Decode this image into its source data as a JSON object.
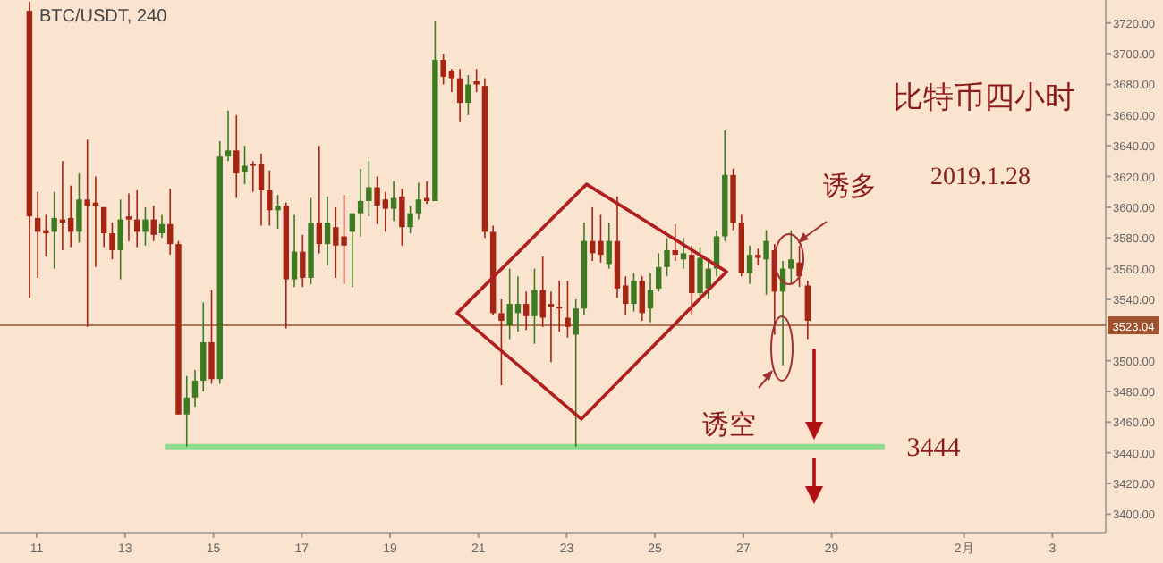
{
  "chart_data": {
    "type": "candlestick",
    "title": "比特币四小时",
    "subtitle": "2019.1.28",
    "annotations": [
      "BTC/USDT, 240",
      {
        "text": "诱多",
        "x": "2019-01-28T02:00",
        "y": 3585
      },
      {
        "text": "诱空",
        "x": "2019-01-27T21:30",
        "y": 3497
      }
    ],
    "x": [
      "2019-01-10T20:00",
      "2019-01-11T00:30",
      "2019-01-11T05:00",
      "2019-01-11T09:30",
      "2019-01-11T14:00",
      "2019-01-11T18:30",
      "2019-01-11T23:00",
      "2019-01-12T03:30",
      "2019-01-12T08:00",
      "2019-01-12T12:30",
      "2019-01-12T17:00",
      "2019-01-12T21:30",
      "2019-01-13T02:00",
      "2019-01-13T06:30",
      "2019-01-13T11:00",
      "2019-01-13T15:30",
      "2019-01-13T20:00",
      "2019-01-14T00:30",
      "2019-01-14T05:00",
      "2019-01-14T09:30",
      "2019-01-14T14:00",
      "2019-01-14T18:30",
      "2019-01-14T23:00",
      "2019-01-15T03:30",
      "2019-01-15T08:00",
      "2019-01-15T12:30",
      "2019-01-15T17:00",
      "2019-01-15T21:30",
      "2019-01-16T02:00",
      "2019-01-16T06:30",
      "2019-01-16T11:00",
      "2019-01-16T15:30",
      "2019-01-16T20:00",
      "2019-01-17T00:30",
      "2019-01-17T05:00",
      "2019-01-17T09:30",
      "2019-01-17T14:00",
      "2019-01-17T18:30",
      "2019-01-17T23:00",
      "2019-01-18T03:30",
      "2019-01-18T08:00",
      "2019-01-18T12:30",
      "2019-01-18T17:00",
      "2019-01-18T21:30",
      "2019-01-19T02:00",
      "2019-01-19T06:30",
      "2019-01-19T11:00",
      "2019-01-19T15:30",
      "2019-01-19T20:00",
      "2019-01-20T00:30",
      "2019-01-20T05:00",
      "2019-01-20T09:30",
      "2019-01-20T14:00",
      "2019-01-20T18:30",
      "2019-01-20T23:00",
      "2019-01-21T03:30",
      "2019-01-21T08:00",
      "2019-01-21T12:30",
      "2019-01-21T17:00",
      "2019-01-21T21:30",
      "2019-01-22T02:00",
      "2019-01-22T06:30",
      "2019-01-22T11:00",
      "2019-01-22T15:30",
      "2019-01-22T20:00",
      "2019-01-23T00:30",
      "2019-01-23T05:00",
      "2019-01-23T09:30",
      "2019-01-23T14:00",
      "2019-01-23T18:30",
      "2019-01-23T23:00",
      "2019-01-24T03:30",
      "2019-01-24T08:00",
      "2019-01-24T12:30",
      "2019-01-24T17:00",
      "2019-01-24T21:30",
      "2019-01-25T02:00",
      "2019-01-25T06:30",
      "2019-01-25T11:00",
      "2019-01-25T15:30",
      "2019-01-25T20:00",
      "2019-01-26T00:30",
      "2019-01-26T05:00",
      "2019-01-26T09:30",
      "2019-01-26T14:00",
      "2019-01-26T18:30",
      "2019-01-26T23:00",
      "2019-01-27T03:30",
      "2019-01-27T08:00",
      "2019-01-27T12:30",
      "2019-01-27T17:00",
      "2019-01-27T21:30",
      "2019-01-28T02:00",
      "2019-01-28T06:30",
      "2019-01-28T11:00"
    ],
    "ohlc": [
      [
        3728,
        3734,
        3541,
        3594
      ],
      [
        3593,
        3610,
        3554,
        3584
      ],
      [
        3585,
        3595,
        3568,
        3583
      ],
      [
        3584,
        3610,
        3560,
        3593
      ],
      [
        3592,
        3630,
        3572,
        3590
      ],
      [
        3593,
        3614,
        3574,
        3584
      ],
      [
        3584,
        3622,
        3577,
        3605
      ],
      [
        3605,
        3644,
        3522,
        3601
      ],
      [
        3603,
        3620,
        3561,
        3601
      ],
      [
        3600,
        3600,
        3574,
        3583
      ],
      [
        3583,
        3590,
        3566,
        3572
      ],
      [
        3572,
        3605,
        3553,
        3592
      ],
      [
        3594,
        3609,
        3578,
        3592
      ],
      [
        3592,
        3611,
        3574,
        3584
      ],
      [
        3584,
        3600,
        3575,
        3592
      ],
      [
        3592,
        3601,
        3578,
        3582
      ],
      [
        3583,
        3595,
        3580,
        3589
      ],
      [
        3589,
        3612,
        3569,
        3576
      ],
      [
        3576,
        3578,
        3465,
        3465
      ],
      [
        3465,
        3490,
        3444,
        3476
      ],
      [
        3476,
        3494,
        3470,
        3487
      ],
      [
        3487,
        3538,
        3480,
        3512
      ],
      [
        3512,
        3546,
        3485,
        3488
      ],
      [
        3488,
        3643,
        3485,
        3633
      ],
      [
        3633,
        3663,
        3630,
        3637
      ],
      [
        3637,
        3660,
        3606,
        3622
      ],
      [
        3623,
        3640,
        3615,
        3627
      ],
      [
        3628,
        3630,
        3610,
        3627
      ],
      [
        3628,
        3635,
        3588,
        3611
      ],
      [
        3611,
        3624,
        3588,
        3598
      ],
      [
        3598,
        3608,
        3586,
        3601
      ],
      [
        3601,
        3603,
        3521,
        3553
      ],
      [
        3553,
        3595,
        3548,
        3571
      ],
      [
        3571,
        3582,
        3548,
        3554
      ],
      [
        3554,
        3606,
        3550,
        3590
      ],
      [
        3590,
        3640,
        3570,
        3576
      ],
      [
        3576,
        3607,
        3562,
        3590
      ],
      [
        3587,
        3600,
        3554,
        3575
      ],
      [
        3581,
        3608,
        3550,
        3575
      ],
      [
        3584,
        3596,
        3548,
        3596
      ],
      [
        3596,
        3625,
        3581,
        3604
      ],
      [
        3604,
        3630,
        3594,
        3613
      ],
      [
        3613,
        3620,
        3589,
        3601
      ],
      [
        3605,
        3610,
        3584,
        3599
      ],
      [
        3599,
        3617,
        3591,
        3606
      ],
      [
        3607,
        3612,
        3575,
        3587
      ],
      [
        3587,
        3601,
        3583,
        3596
      ],
      [
        3596,
        3616,
        3592,
        3605
      ],
      [
        3606,
        3617,
        3602,
        3604
      ],
      [
        3604,
        3721,
        3604,
        3696
      ],
      [
        3696,
        3700,
        3680,
        3685
      ],
      [
        3689,
        3690,
        3675,
        3684
      ],
      [
        3684,
        3690,
        3656,
        3668
      ],
      [
        3668,
        3686,
        3660,
        3680
      ],
      [
        3682,
        3690,
        3675,
        3680
      ],
      [
        3679,
        3684,
        3580,
        3584
      ],
      [
        3584,
        3588,
        3530,
        3531
      ],
      [
        3531,
        3540,
        3484,
        3526
      ],
      [
        3523,
        3560,
        3514,
        3537
      ],
      [
        3531,
        3555,
        3519,
        3537
      ],
      [
        3537,
        3545,
        3520,
        3529
      ],
      [
        3529,
        3560,
        3511,
        3546
      ],
      [
        3546,
        3568,
        3522,
        3528
      ],
      [
        3537,
        3545,
        3499,
        3535
      ],
      [
        3535,
        3552,
        3519,
        3534
      ],
      [
        3528,
        3552,
        3515,
        3522
      ],
      [
        3517,
        3540,
        3444,
        3534
      ],
      [
        3534,
        3590,
        3530,
        3578
      ],
      [
        3578,
        3600,
        3565,
        3570
      ],
      [
        3578,
        3595,
        3564,
        3569
      ],
      [
        3563,
        3590,
        3560,
        3578
      ],
      [
        3578,
        3607,
        3541,
        3547
      ],
      [
        3549,
        3555,
        3530,
        3537
      ],
      [
        3537,
        3557,
        3532,
        3552
      ],
      [
        3552,
        3555,
        3526,
        3531
      ],
      [
        3534,
        3557,
        3525,
        3546
      ],
      [
        3547,
        3570,
        3545,
        3561
      ],
      [
        3561,
        3580,
        3555,
        3572
      ],
      [
        3572,
        3589,
        3565,
        3569
      ],
      [
        3566,
        3580,
        3560,
        3570
      ],
      [
        3569,
        3575,
        3530,
        3544
      ],
      [
        3544,
        3574,
        3539,
        3567
      ],
      [
        3547,
        3565,
        3540,
        3560
      ],
      [
        3560,
        3585,
        3555,
        3581
      ],
      [
        3581,
        3650,
        3578,
        3621
      ],
      [
        3621,
        3625,
        3585,
        3590
      ],
      [
        3590,
        3595,
        3555,
        3557
      ],
      [
        3557,
        3575,
        3550,
        3569
      ],
      [
        3569,
        3573,
        3562,
        3567
      ],
      [
        3566,
        3585,
        3543,
        3578
      ],
      [
        3572,
        3576,
        3517,
        3545
      ],
      [
        3545,
        3565,
        3497,
        3560
      ],
      [
        3560,
        3585,
        3550,
        3566
      ],
      [
        3564,
        3575,
        3548,
        3555
      ],
      [
        3549,
        3552,
        3514,
        3526
      ]
    ],
    "colors": [
      "#a62412",
      "#a62412",
      "#a62412",
      "#3d7a22",
      "#a62412",
      "#a62412",
      "#3d7a22",
      "#a62412",
      "#a62412",
      "#a62412",
      "#a62412",
      "#3d7a22",
      "#a62412",
      "#a62412",
      "#3d7a22",
      "#a62412",
      "#3d7a22",
      "#a62412",
      "#a62412",
      "#3d7a22",
      "#3d7a22",
      "#3d7a22",
      "#a62412",
      "#3d7a22",
      "#3d7a22",
      "#a62412",
      "#3d7a22",
      "#a62412",
      "#a62412",
      "#a62412",
      "#3d7a22",
      "#a62412",
      "#3d7a22",
      "#a62412",
      "#3d7a22",
      "#a62412",
      "#3d7a22",
      "#a62412",
      "#a62412",
      "#3d7a22",
      "#3d7a22",
      "#3d7a22",
      "#a62412",
      "#a62412",
      "#3d7a22",
      "#a62412",
      "#3d7a22",
      "#3d7a22",
      "#a62412",
      "#3d7a22",
      "#a62412",
      "#a62412",
      "#a62412",
      "#3d7a22",
      "#a62412",
      "#a62412",
      "#a62412",
      "#a62412",
      "#3d7a22",
      "#3d7a22",
      "#a62412",
      "#3d7a22",
      "#a62412",
      "#a62412",
      "#a62412",
      "#a62412",
      "#3d7a22",
      "#3d7a22",
      "#a62412",
      "#a62412",
      "#3d7a22",
      "#a62412",
      "#a62412",
      "#3d7a22",
      "#a62412",
      "#3d7a22",
      "#3d7a22",
      "#3d7a22",
      "#a62412",
      "#3d7a22",
      "#a62412",
      "#3d7a22",
      "#3d7a22",
      "#3d7a22",
      "#3d7a22",
      "#a62412",
      "#a62412",
      "#3d7a22",
      "#a62412",
      "#3d7a22",
      "#a62412",
      "#3d7a22",
      "#3d7a22",
      "#a62412",
      "#a62412"
    ],
    "xlim": [
      "2019-01-10T04:00",
      "2019-02-04T05:00"
    ],
    "xticks": [
      {
        "value": "2019-01-11",
        "label": "11"
      },
      {
        "value": "2019-01-13",
        "label": "13"
      },
      {
        "value": "2019-01-15",
        "label": "15"
      },
      {
        "value": "2019-01-17",
        "label": "17"
      },
      {
        "value": "2019-01-19",
        "label": "19"
      },
      {
        "value": "2019-01-21",
        "label": "21"
      },
      {
        "value": "2019-01-23",
        "label": "23"
      },
      {
        "value": "2019-01-25",
        "label": "25"
      },
      {
        "value": "2019-01-27",
        "label": "27"
      },
      {
        "value": "2019-01-29",
        "label": "29"
      },
      {
        "value": "2019-02-01",
        "label": "2月"
      },
      {
        "value": "2019-02-03",
        "label": "3"
      }
    ],
    "ylim": [
      3388,
      3735
    ],
    "yticks": [
      {
        "value": 3400,
        "label": "3400.00"
      },
      {
        "value": 3420,
        "label": "3420.00"
      },
      {
        "value": 3440,
        "label": "3440.00"
      },
      {
        "value": 3460,
        "label": "3460.00"
      },
      {
        "value": 3480,
        "label": "3480.00"
      },
      {
        "value": 3500,
        "label": "3500.00"
      },
      {
        "value": 3540,
        "label": "3540.00"
      },
      {
        "value": 3560,
        "label": "3560.00"
      },
      {
        "value": 3580,
        "label": "3580.00"
      },
      {
        "value": 3600,
        "label": "3600.00"
      },
      {
        "value": 3620,
        "label": "3620.00"
      },
      {
        "value": 3640,
        "label": "3640.00"
      },
      {
        "value": 3660,
        "label": "3660.00"
      },
      {
        "value": 3680,
        "label": "3680.00"
      },
      {
        "value": 3700,
        "label": "3700.00"
      },
      {
        "value": 3720,
        "label": "3720.00"
      }
    ],
    "ref_lines": [
      {
        "axis": "y",
        "value": 3523.04,
        "label": "3523.04",
        "color": "#a0522d"
      },
      {
        "axis": "y",
        "value": 3444,
        "label": "3444",
        "color": "#8fdc8f"
      }
    ]
  }
}
